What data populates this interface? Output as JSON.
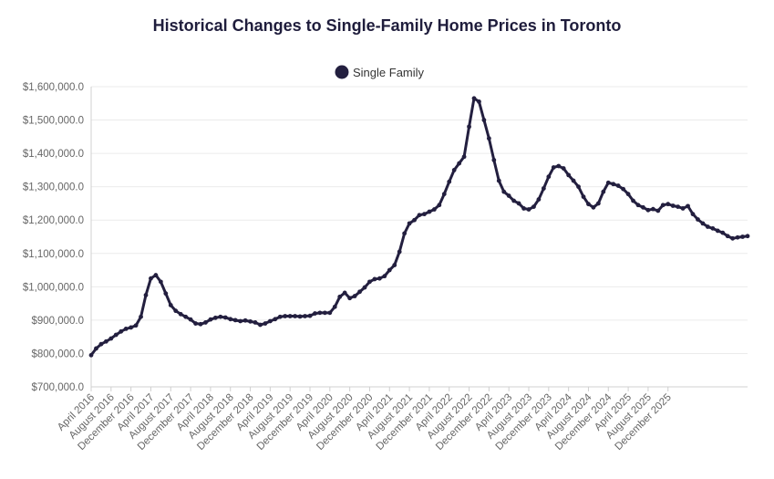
{
  "chart_data": {
    "type": "line",
    "title": "Historical Changes to Single-Family Home Prices in Toronto",
    "xlabel": "",
    "ylabel": "",
    "ylim": [
      700000,
      1600000
    ],
    "y_ticks": [
      "$700,000.0",
      "$800,000.0",
      "$900,000.0",
      "$1,000,000.0",
      "$1,100,000.0",
      "$1,200,000.0",
      "$1,300,000.0",
      "$1,400,000.0",
      "$1,500,000.0",
      "$1,600,000.0"
    ],
    "x_tick_labels": [
      "April 2016",
      "August 2016",
      "December 2016",
      "April 2017",
      "August 2017",
      "December 2017",
      "April 2018",
      "August 2018",
      "December 2018",
      "April 2019",
      "August 2019",
      "December 2019",
      "April 2020",
      "August 2020",
      "December 2020",
      "April 2021",
      "August 2021",
      "December 2021",
      "April 2022",
      "August 2022",
      "December 2022",
      "April 2023",
      "August 2023",
      "December 2023",
      "April 2024",
      "August 2024",
      "December 2024",
      "April 2025",
      "August 2025",
      "December 2025"
    ],
    "legend": {
      "position": "top-center",
      "label": "Single Family"
    },
    "series": [
      {
        "name": "Single Family",
        "color": "#231f3f",
        "values": [
          795000,
          815000,
          828000,
          836000,
          845000,
          856000,
          866000,
          874000,
          878000,
          884000,
          910000,
          975000,
          1025000,
          1035000,
          1015000,
          980000,
          945000,
          928000,
          918000,
          910000,
          902000,
          890000,
          888000,
          893000,
          902000,
          907000,
          910000,
          908000,
          903000,
          900000,
          897000,
          899000,
          896000,
          893000,
          886000,
          890000,
          897000,
          903000,
          910000,
          912000,
          912000,
          912000,
          911000,
          912000,
          913000,
          920000,
          922000,
          922000,
          922000,
          940000,
          970000,
          982000,
          966000,
          972000,
          985000,
          998000,
          1015000,
          1023000,
          1025000,
          1032000,
          1050000,
          1065000,
          1105000,
          1160000,
          1190000,
          1200000,
          1215000,
          1218000,
          1225000,
          1232000,
          1245000,
          1278000,
          1315000,
          1350000,
          1370000,
          1390000,
          1480000,
          1565000,
          1555000,
          1500000,
          1445000,
          1380000,
          1318000,
          1285000,
          1273000,
          1258000,
          1250000,
          1235000,
          1232000,
          1240000,
          1262000,
          1295000,
          1330000,
          1358000,
          1362000,
          1355000,
          1335000,
          1318000,
          1300000,
          1270000,
          1248000,
          1238000,
          1250000,
          1285000,
          1312000,
          1308000,
          1303000,
          1293000,
          1278000,
          1258000,
          1245000,
          1238000,
          1230000,
          1233000,
          1228000,
          1245000,
          1248000,
          1243000,
          1240000,
          1235000,
          1242000,
          1218000,
          1202000,
          1190000,
          1180000,
          1175000,
          1168000,
          1162000,
          1152000,
          1145000,
          1148000,
          1150000,
          1152000
        ]
      }
    ]
  }
}
